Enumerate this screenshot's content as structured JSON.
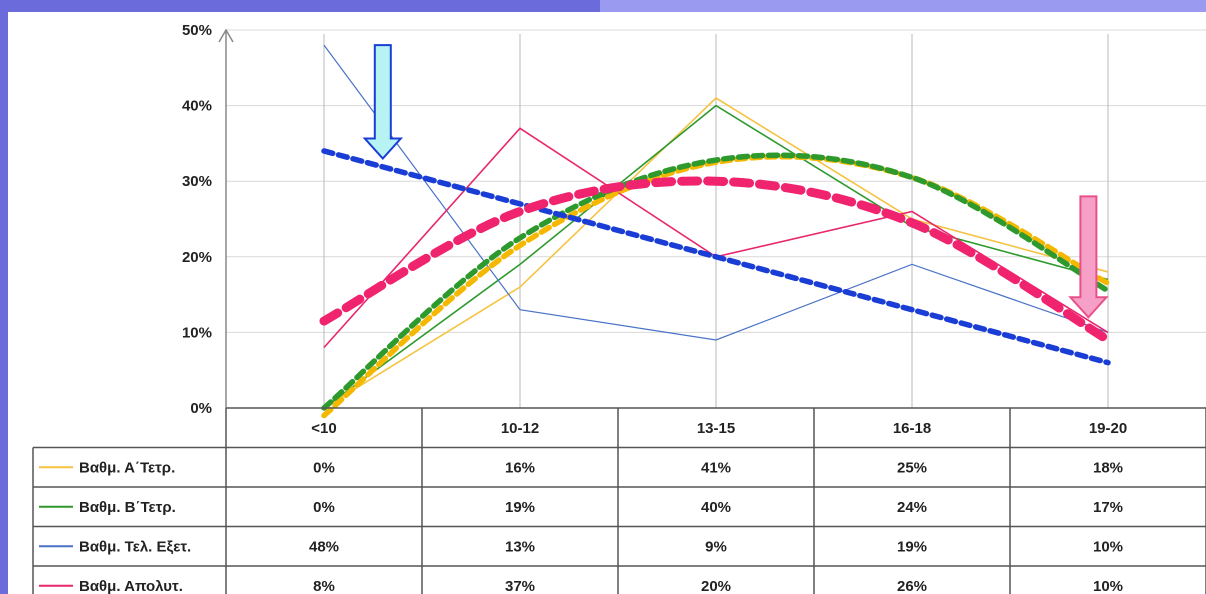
{
  "chart_data": {
    "type": "line",
    "categories": [
      "<10",
      "10-12",
      "13-15",
      "16-18",
      "19-20"
    ],
    "ylim": [
      0,
      50
    ],
    "y_ticks": [
      "0%",
      "10%",
      "20%",
      "30%",
      "40%",
      "50%"
    ],
    "grid": true,
    "legend": "data table below chart",
    "series": [
      {
        "name": "Βαθμ. Α΄Τετρ.",
        "color": "#f5c342",
        "values": [
          0,
          16,
          41,
          25,
          18
        ],
        "display": [
          "0%",
          "16%",
          "41%",
          "25%",
          "18%"
        ]
      },
      {
        "name": "Βαθμ. Β΄Τετρ.",
        "color": "#2e9a2e",
        "values": [
          0,
          19,
          40,
          24,
          17
        ],
        "display": [
          "0%",
          "19%",
          "40%",
          "24%",
          "17%"
        ]
      },
      {
        "name": "Βαθμ. Τελ. Εξετ.",
        "color": "#4a72c8",
        "values": [
          48,
          13,
          9,
          19,
          10
        ],
        "display": [
          "48%",
          "13%",
          "9%",
          "19%",
          "10%"
        ]
      },
      {
        "name": "Βαθμ. Απολυτ.",
        "color": "#e8266c",
        "values": [
          8,
          37,
          20,
          26,
          10
        ],
        "display": [
          "8%",
          "37%",
          "20%",
          "26%",
          "10%"
        ]
      }
    ],
    "trendlines": [
      {
        "color": "#f5b800",
        "values": [
          -1,
          21.5,
          32.5,
          30.5,
          16.5
        ]
      },
      {
        "color": "#2e9a2e",
        "values": [
          0,
          22.5,
          32.8,
          30.5,
          15.5
        ]
      },
      {
        "color": "#1a3dd6",
        "values": [
          34,
          27,
          20,
          13,
          6
        ]
      },
      {
        "color": "#f0246e",
        "values": [
          11.5,
          26,
          30,
          24.5,
          9
        ]
      }
    ],
    "arrows": [
      {
        "color": "#1a3dd6",
        "fill": "#b8f3f3",
        "at_x": 0.3,
        "tip_y": 33,
        "top_y": 48
      },
      {
        "color": "#e8508a",
        "fill": "#f6a0c8",
        "at_x": 3.9,
        "tip_y": 12,
        "top_y": 28
      }
    ]
  }
}
